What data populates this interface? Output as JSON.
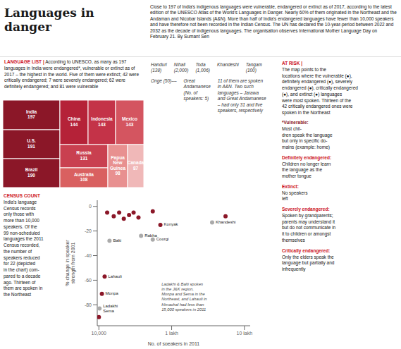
{
  "title": "Languages in danger",
  "subtitle": "Close to 197 of India's indigenous languages were vulnerable,\nendangered or extinct as of 2017, according to the latest edition of the UNESCO Atlas of the World's Languages in Danger.\nNearly 60% of them originated in the Northeast and the Andaman and Nicobar Islands (A&N). More than half of India's\nendangered languages have fewer than 10,000 speakers and have therefore not been recorded in the Indian Census. The\nUN has declared the 10-year-period between 2022 and 2032 as the decade of indigenous languages. The organisation\nobserves International Mother Language Day on February 21. By Sumant Sen",
  "annotations": [
    {
      "title": "AT RISK |",
      "text": "The map points to the\nlocations where the vulnerable (●),\ndefinitely endangered (●), severely\nendangered (●), critically endangered\n(●), and extinct (●) languages\nwere most spoken. Thirteen of the\n42 critically endangered ones were\nspoken in the Northeast",
      "color": "#CC1122"
    },
    {
      "title": "*Vulnerable:",
      "text": "Most chil-\ndren speak the language\nbut only in specific do-\nmains (example: home)",
      "color": "#8B1728"
    },
    {
      "title": "Definitely endangered:",
      "text": "Children no longer learn\nthe language as the\nmother tongue",
      "color": "#CC1122"
    },
    {
      "title": "Extinct:",
      "text": "No speakers\nleft",
      "color": "#CC1122"
    },
    {
      "title": "Severely endangered:",
      "text": "Spoken by grandparents;\nparents may understand it\nbut do not communicate in\nit to children or amongst\nthemselves",
      "color": "#CC1122"
    },
    {
      "title": "Critically endangered:",
      "text": "Only the elders speak the\nlanguage but partially and\ninfrequently",
      "color": "#CC1122"
    },
    {
      "text": "Handuri\n(138)"
    },
    {
      "text": "Nihali\n(2,000)"
    },
    {
      "text": "Toda\n(1,006)"
    },
    {
      "text": "Khandeshi"
    },
    {
      "text": "Tangam\n(100)"
    },
    {
      "text": "Onge (50)––"
    },
    {
      "text": "Great\nAndamanese\n(No. of\nspeakers: 5)"
    },
    {
      "text": "11 of them are spoken\nin A&N. Two such\nlanguages – Jarawa\nand Great Andamanese\n– had only 31 and five\nspeakers, respectively"
    }
  ],
  "chart_data": [
    {
      "type": "treemap",
      "categories": [
        "India",
        "U.S.",
        "Brazil",
        "China",
        "Indonesia",
        "Mexico",
        "Russia",
        "Australia",
        "Papua New Guinea",
        "Canada"
      ],
      "values": [
        197,
        191,
        190,
        144,
        143,
        143,
        131,
        108,
        98,
        87
      ],
      "colors": [
        "#8B1728",
        "#8B1728",
        "#8B1728",
        "#B52238",
        "#C43348",
        "#D45560",
        "#C94050",
        "#D96060",
        "#E89090",
        "#F0B8B8"
      ],
      "data_labels": true,
      "annotations": [
        {
          "title": "LANGUAGE LIST |",
          "text": "According to UNESCO, as many as 197\nlanguages in India were endangered*, vulnerable or extinct as\nof 2017 – the highest in the world. Five of them were extinct;\n42 were critically endangered; 7 were severely endangered; 62\nwere definitely endangered; and 81 were vulnerable",
          "color": "#CC1122"
        }
      ]
    },
    {
      "type": "scatter",
      "x": [
        13000,
        16000,
        19000,
        22000,
        26000,
        30000,
        35000,
        55000,
        70000,
        550000,
        14000,
        38000,
        55000,
        360000,
        12000,
        11000,
        10200,
        10000
      ],
      "values": [
        -5,
        -8,
        -5,
        -10,
        -7,
        -5,
        -9,
        -4,
        -15,
        -8,
        -28,
        -24,
        -27,
        -13,
        -57,
        -71,
        -83,
        -90
      ],
      "colors": [
        "#8B1728",
        "#8B1728",
        "#8B1728",
        "#8B1728",
        "#8B1728",
        "#8B1728",
        "#8B1728",
        "#8B1728",
        "#8B1728",
        "#8B1728",
        "#AAAAAA",
        "#AAAAAA",
        "#AAAAAA",
        "#AAAAAA",
        "#8B1728",
        "#8B1728",
        "#AAAAAA",
        "#8B1728"
      ],
      "labels": [
        null,
        null,
        null,
        null,
        null,
        null,
        null,
        null,
        "Konyak",
        null,
        "Balti",
        "Rabha",
        "Coorgi",
        "Khandeshi",
        "Lahauli",
        "Monpa",
        "Ladakhi\nSema",
        null
      ],
      "xlabel": "No. of speakers in 2011",
      "ylabel": "% change in speaker\nstrength from 2001",
      "log": "x",
      "xlim": [
        9500,
        1200000
      ],
      "xticks": [
        {
          "value": 10000,
          "label": "10,000"
        },
        {
          "value": 100000,
          "label": "1 lakh"
        },
        {
          "value": 1000000,
          "label": "10 lakh"
        }
      ],
      "ylim": [
        -97,
        5
      ],
      "yticks": [
        0,
        -20,
        -40,
        -60,
        -80
      ],
      "grid": false,
      "annotations": [
        {
          "title": "CENSUS COUNT",
          "text": "India's language\nCensus records\nonly those with\nmore than 10,000\nspeakers. Of the\n99 non-scheduled\nlanguages the 2011\nCensus recorded,\nthe number of\nspeakers reduced\nfor 22 (depicted\nin the chart) com-\npared to a decade\nago. Thirteen of\nthem are spoken in\nthe Northeast",
          "color": "#CC1122"
        },
        {
          "text": "Ladakhi & Balti spoken\nin the J&K region,\nMonpa and Sema in the\nNortheast, and Lahauli in\nHimachal had less than\n15,000 speakers in 2011"
        }
      ]
    }
  ]
}
